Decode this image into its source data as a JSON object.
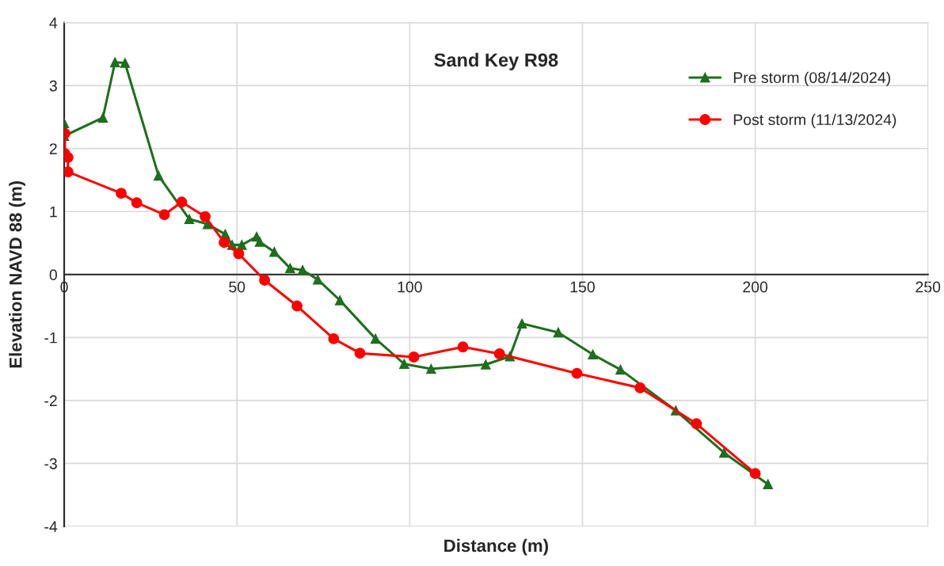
{
  "chart_data": {
    "type": "line",
    "title": "Sand Key R98",
    "xlabel": "Distance (m)",
    "ylabel": "Elevation NAVD 88 (m)",
    "xlim": [
      0,
      250
    ],
    "xticks": [
      0,
      50,
      100,
      150,
      200,
      250
    ],
    "ylim": [
      -4,
      4
    ],
    "yticks": [
      -4,
      -3,
      -2,
      -1,
      0,
      1,
      2,
      3,
      4
    ],
    "grid": true,
    "legend": "top right",
    "line_style": "solid",
    "series": [
      {
        "name": "Pre storm (08/14/2024)",
        "color": "#1e6f1e",
        "marker": "triangle",
        "x": [
          0,
          0,
          11.2,
          14.7,
          17.6,
          27.3,
          36.2,
          41.5,
          46.6,
          48.6,
          51.4,
          55.7,
          56.6,
          60.8,
          65.4,
          69,
          73.4,
          79.8,
          90.1,
          98.4,
          106.2,
          122,
          129,
          132.5,
          143,
          153,
          161,
          177,
          191,
          203.7
        ],
        "values": [
          2.4,
          2.2,
          2.49,
          3.37,
          3.36,
          1.57,
          0.88,
          0.8,
          0.64,
          0.47,
          0.47,
          0.6,
          0.52,
          0.36,
          0.1,
          0.07,
          -0.08,
          -0.41,
          -1.02,
          -1.42,
          -1.5,
          -1.43,
          -1.3,
          -0.78,
          -0.92,
          -1.27,
          -1.51,
          -2.16,
          -2.83,
          -3.33
        ]
      },
      {
        "name": "Post storm (11/13/2024)",
        "color": "#ff0000",
        "marker": "circle",
        "x": [
          0.2,
          0.2,
          1.1,
          1.1,
          16.5,
          21,
          29,
          34,
          40.8,
          46.3,
          50.5,
          58,
          67.4,
          78,
          85.6,
          101.2,
          115.4,
          126,
          148.4,
          166.7,
          183,
          200
        ],
        "values": [
          2.24,
          1.92,
          1.86,
          1.63,
          1.29,
          1.14,
          0.95,
          1.15,
          0.92,
          0.51,
          0.33,
          -0.09,
          -0.5,
          -1.02,
          -1.25,
          -1.31,
          -1.15,
          -1.26,
          -1.57,
          -1.8,
          -2.37,
          -3.16
        ]
      }
    ]
  }
}
